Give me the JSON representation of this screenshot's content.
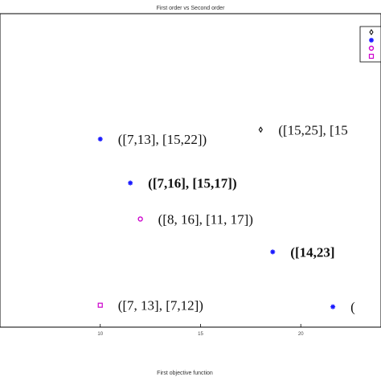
{
  "chart_data": {
    "type": "scatter",
    "title": "First order vs Second order",
    "xlabel": "First objective function",
    "ylabel": "",
    "xlim": [
      5,
      24
    ],
    "ylim": [
      0,
      10
    ],
    "x_ticks": [
      10,
      15,
      20
    ],
    "grid": false,
    "legend_placement": "top-right",
    "series": [
      {
        "marker": "diamond",
        "color": "#000000",
        "points": [
          {
            "x": 18.0,
            "y": 6.3,
            "label": "([15,25], [15"
          }
        ]
      },
      {
        "marker": "star",
        "color": "#1a1aff",
        "points": [
          {
            "x": 10.0,
            "y": 6.0,
            "label": "([7,13], [15,22])"
          },
          {
            "x": 11.5,
            "y": 4.6,
            "label": "([7,16], [15,17])",
            "bold": true
          },
          {
            "x": 18.6,
            "y": 2.4,
            "label": "([14,23]",
            "bold": true
          },
          {
            "x": 21.6,
            "y": 0.65,
            "label": "("
          }
        ]
      },
      {
        "marker": "circle",
        "color": "#cc00cc",
        "points": [
          {
            "x": 12.0,
            "y": 3.45,
            "label": "([8, 16], [11, 17])"
          }
        ]
      },
      {
        "marker": "square",
        "color": "#cc00cc",
        "points": [
          {
            "x": 10.0,
            "y": 0.7,
            "label": "([7, 13], [7,12])"
          }
        ]
      }
    ]
  }
}
